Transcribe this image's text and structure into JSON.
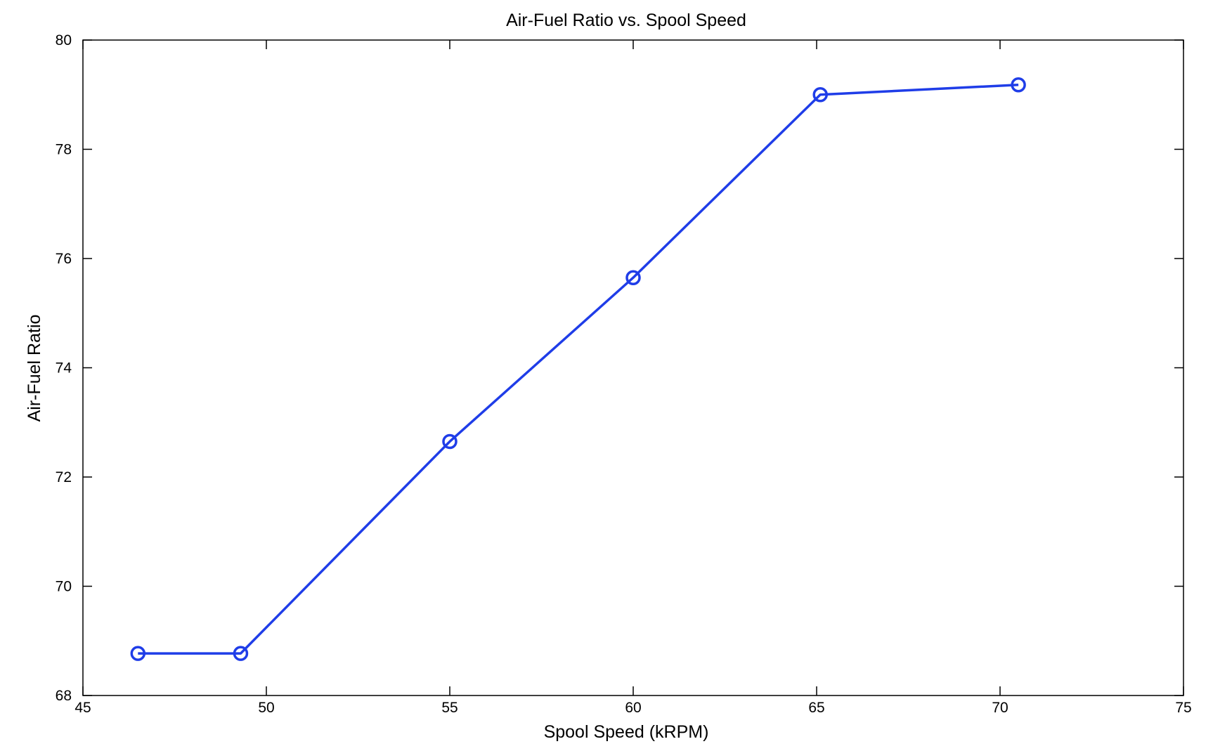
{
  "chart_data": {
    "type": "line",
    "title": "Air-Fuel Ratio vs. Spool Speed",
    "xlabel": "Spool Speed (kRPM)",
    "ylabel": "Air-Fuel Ratio",
    "xlim": [
      45,
      75
    ],
    "ylim": [
      68,
      80
    ],
    "xticks": [
      45,
      50,
      55,
      60,
      65,
      70,
      75
    ],
    "yticks": [
      68,
      70,
      72,
      74,
      76,
      78,
      80
    ],
    "grid": false,
    "legend": "none",
    "series": [
      {
        "color": "#1f3de8",
        "marker": "circle",
        "x": [
          46.5,
          49.3,
          55.0,
          60.0,
          65.1,
          70.5
        ],
        "y": [
          68.77,
          68.77,
          72.65,
          75.65,
          79.0,
          79.18
        ]
      }
    ]
  }
}
